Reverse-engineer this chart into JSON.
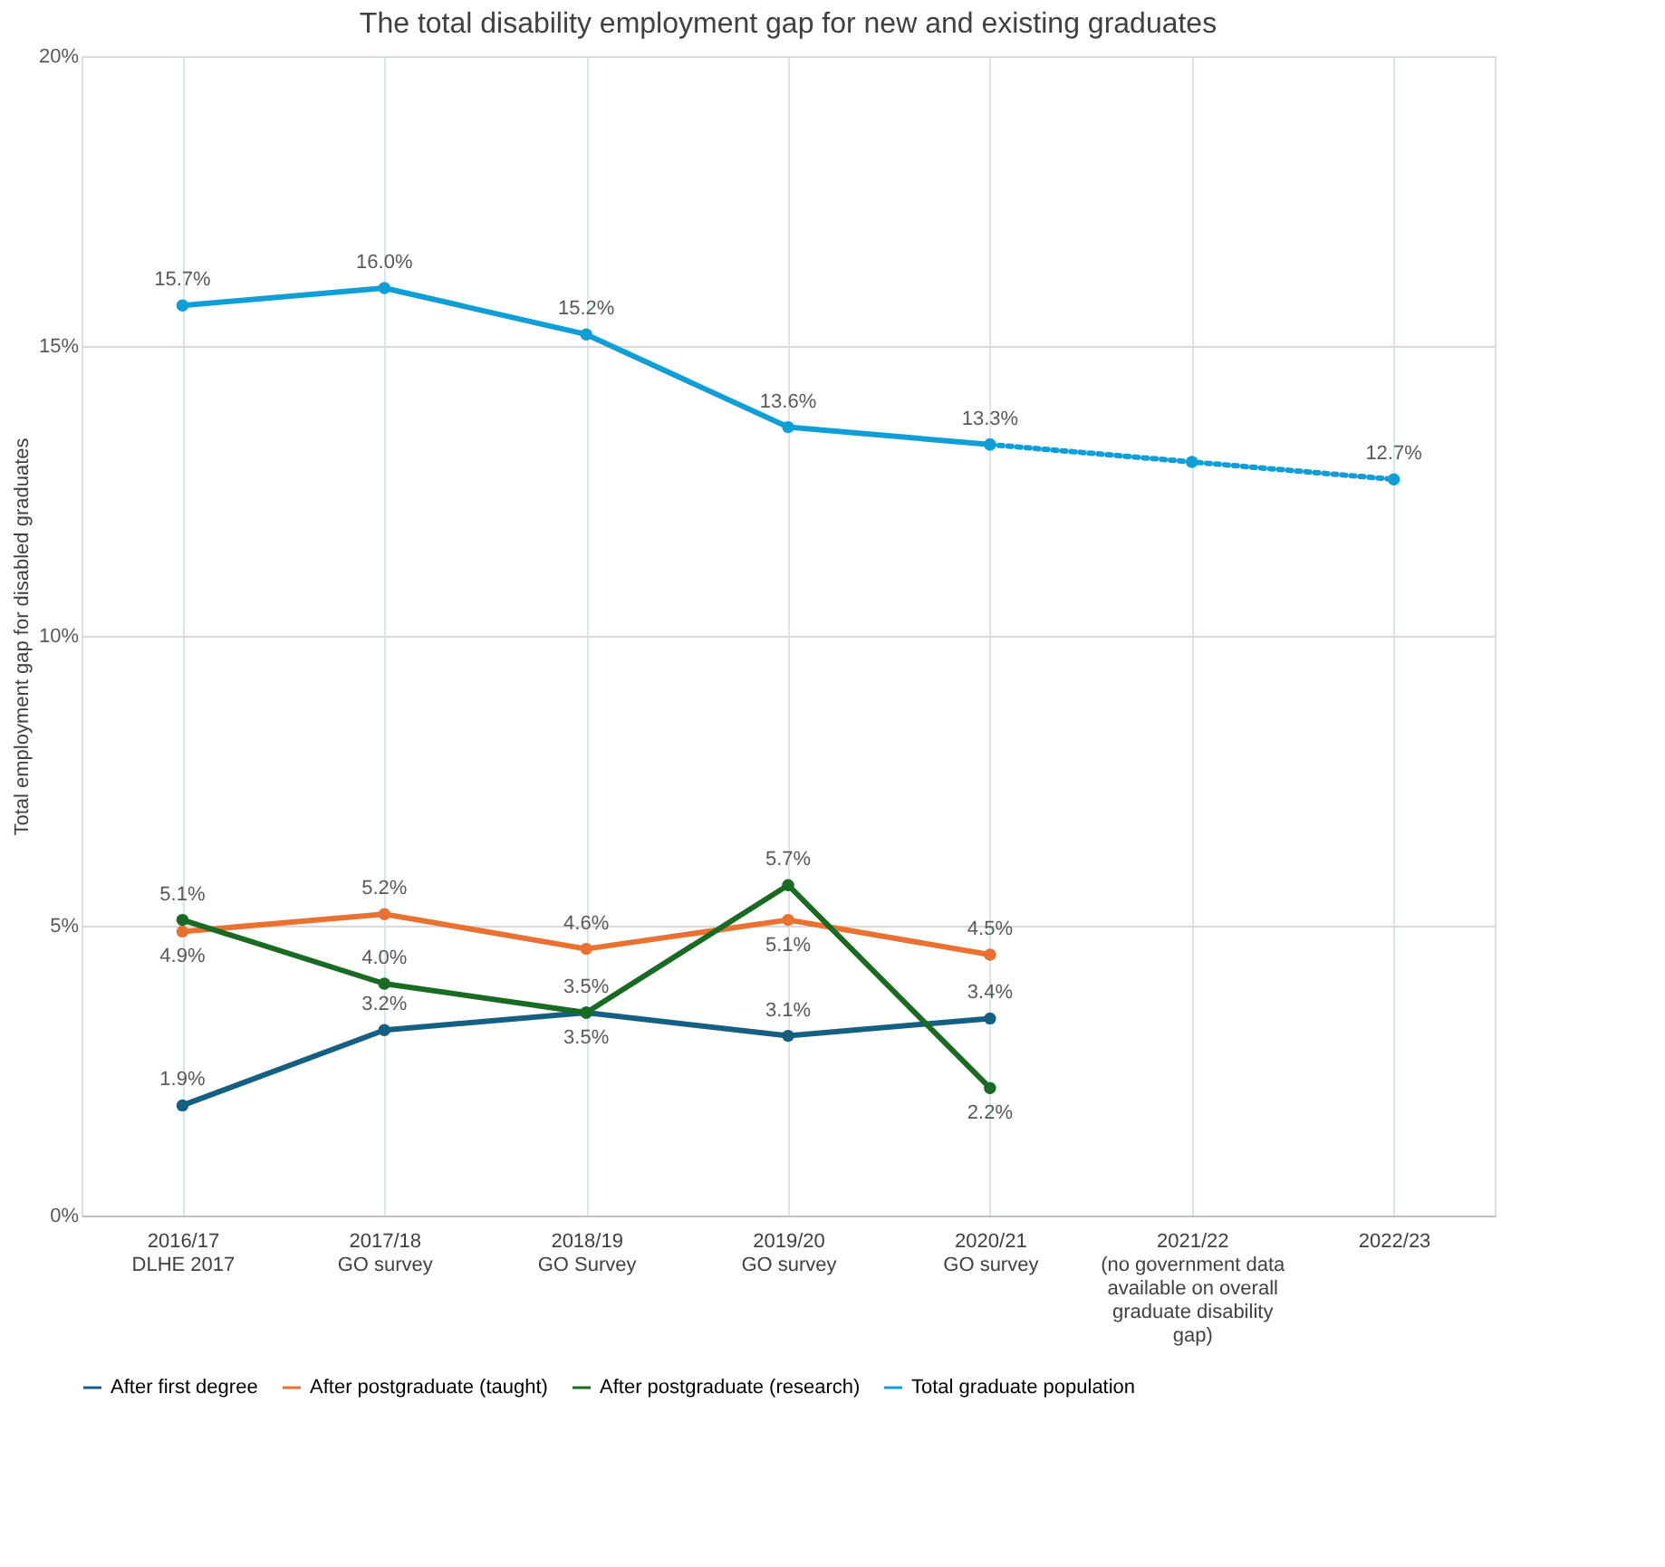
{
  "chart_data": {
    "type": "line",
    "title": "The total disability employment gap for new and existing graduates",
    "ylabel": "Total employment gap for disabled graduates",
    "categories": [
      "2016/17\nDLHE 2017",
      "2017/18\nGO survey",
      "2018/19\nGO Survey",
      "2019/20\nGO survey",
      "2020/21\nGO survey",
      "2021/22\n(no government data\navailable on overall\ngraduate disability\ngap)",
      "2022/23"
    ],
    "series": [
      {
        "name": "After first degree",
        "color": "#156082",
        "values": [
          1.9,
          3.2,
          3.5,
          3.1,
          3.4,
          null,
          null
        ],
        "value_labels": [
          "1.9%",
          "3.2%",
          "3.5%",
          "3.1%",
          "3.4%",
          null,
          null
        ]
      },
      {
        "name": "After postgraduate (taught)",
        "color": "#e97132",
        "values": [
          4.9,
          5.2,
          4.6,
          5.1,
          4.5,
          null,
          null
        ],
        "value_labels": [
          "4.9%",
          "5.2%",
          "4.6%",
          "5.1%",
          "4.5%",
          null,
          null
        ]
      },
      {
        "name": "After postgraduate (research)",
        "color": "#196b24",
        "values": [
          5.1,
          4.0,
          3.5,
          5.7,
          2.2,
          null,
          null
        ],
        "value_labels": [
          "5.1%",
          "4.0%",
          "3.5%",
          "5.7%",
          "2.2%",
          null,
          null
        ]
      },
      {
        "name": "Total graduate population",
        "color": "#0f9ed5",
        "values": [
          15.7,
          16.0,
          15.2,
          13.6,
          13.3,
          null,
          null
        ],
        "value_labels": [
          "15.7%",
          "16.0%",
          "15.2%",
          "13.6%",
          "13.3%",
          null,
          null
        ]
      },
      {
        "color": "#0f9ed5",
        "line_style": "dotted",
        "values": [
          null,
          null,
          null,
          null,
          13.3,
          13.0,
          12.7
        ],
        "value_labels": [
          null,
          null,
          null,
          null,
          null,
          null,
          "12.7%"
        ]
      }
    ],
    "ylim": [
      0,
      20
    ],
    "yticks": [
      {
        "value": 0,
        "label": "0%"
      },
      {
        "value": 5,
        "label": "5%"
      },
      {
        "value": 10,
        "label": "10%"
      },
      {
        "value": 15,
        "label": "15%"
      },
      {
        "value": 20,
        "label": "20%"
      }
    ],
    "grid": true,
    "legend": "bottom",
    "marker": "circle",
    "line_style": "solid"
  }
}
